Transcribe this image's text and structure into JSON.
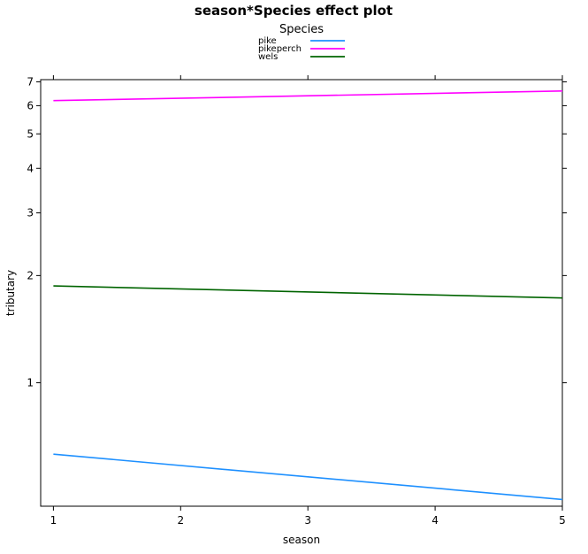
{
  "chart_data": {
    "type": "line",
    "title": "season*Species effect plot",
    "xlabel": "season",
    "ylabel": "tributary",
    "legend": {
      "title": "Species",
      "position": "top-center"
    },
    "x": [
      1,
      5
    ],
    "xlim": [
      0.9,
      5.0
    ],
    "ylim": [
      0.45,
      7.1
    ],
    "y_scale": "log",
    "x_ticks": [
      1,
      2,
      3,
      4,
      5
    ],
    "y_ticks": [
      1,
      2,
      3,
      4,
      5,
      6,
      7
    ],
    "grid": false,
    "series": [
      {
        "name": "pike",
        "color": "#1E90FF",
        "values": [
          0.63,
          0.47
        ]
      },
      {
        "name": "pikeperch",
        "color": "#FF00FF",
        "values": [
          6.2,
          6.6
        ]
      },
      {
        "name": "wels",
        "color": "#006400",
        "values": [
          1.87,
          1.73
        ]
      }
    ]
  }
}
